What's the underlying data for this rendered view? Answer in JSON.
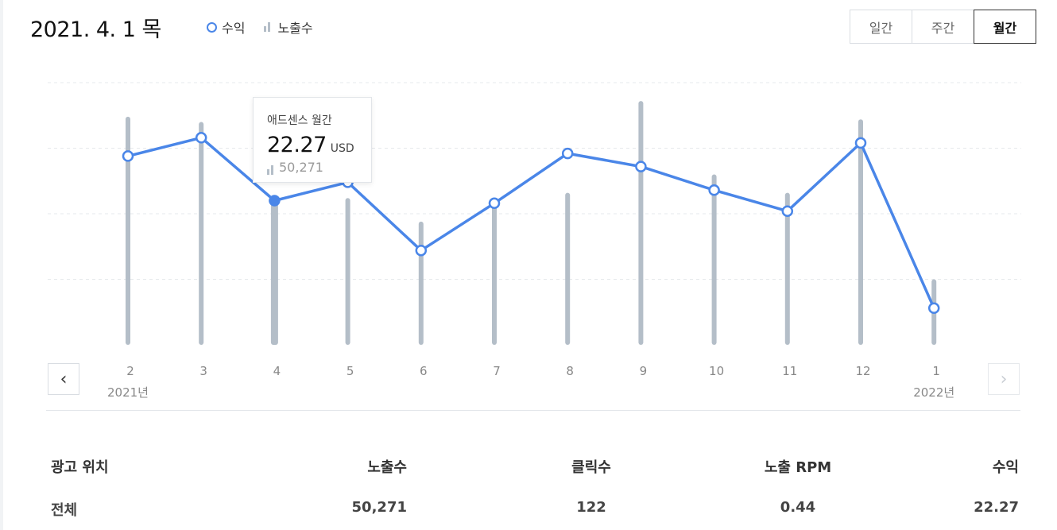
{
  "header": {
    "date": "2021. 4. 1 목"
  },
  "legend": {
    "revenue": "수익",
    "impressions": "노출수"
  },
  "period": {
    "daily": "일간",
    "weekly": "주간",
    "monthly": "월간",
    "selected": "monthly"
  },
  "tooltip": {
    "label": "애드센스 월간",
    "value": "22.27",
    "unit": "USD",
    "impressions": "50,271"
  },
  "nav": {
    "prev": "‹",
    "next": "›"
  },
  "colors": {
    "line": "#4a86e8",
    "bar": "#b4bec8",
    "grid": "#e6e9ec"
  },
  "chart_data": {
    "type": "bar+line",
    "categories": [
      "2",
      "3",
      "4",
      "5",
      "6",
      "7",
      "8",
      "9",
      "10",
      "11",
      "12",
      "1"
    ],
    "year_labels": [
      {
        "index": 0,
        "label": "2021년"
      },
      {
        "index": 11,
        "label": "2022년"
      }
    ],
    "series": [
      {
        "name": "노출수",
        "type": "bar",
        "values": [
          87,
          85,
          55,
          56,
          47,
          53,
          58,
          93,
          65,
          58,
          86,
          25
        ]
      },
      {
        "name": "수익",
        "type": "line",
        "values": [
          72,
          79,
          55,
          62,
          36,
          54,
          73,
          68,
          59,
          51,
          77,
          14
        ]
      }
    ],
    "ylim": [
      0,
      100
    ],
    "highlight_index": 2,
    "grid": true
  },
  "table": {
    "headers": [
      "광고 위치",
      "노출수",
      "클릭수",
      "노출 RPM",
      "수익"
    ],
    "rows": [
      [
        "전체",
        "50,271",
        "122",
        "0.44",
        "22.27"
      ]
    ]
  }
}
